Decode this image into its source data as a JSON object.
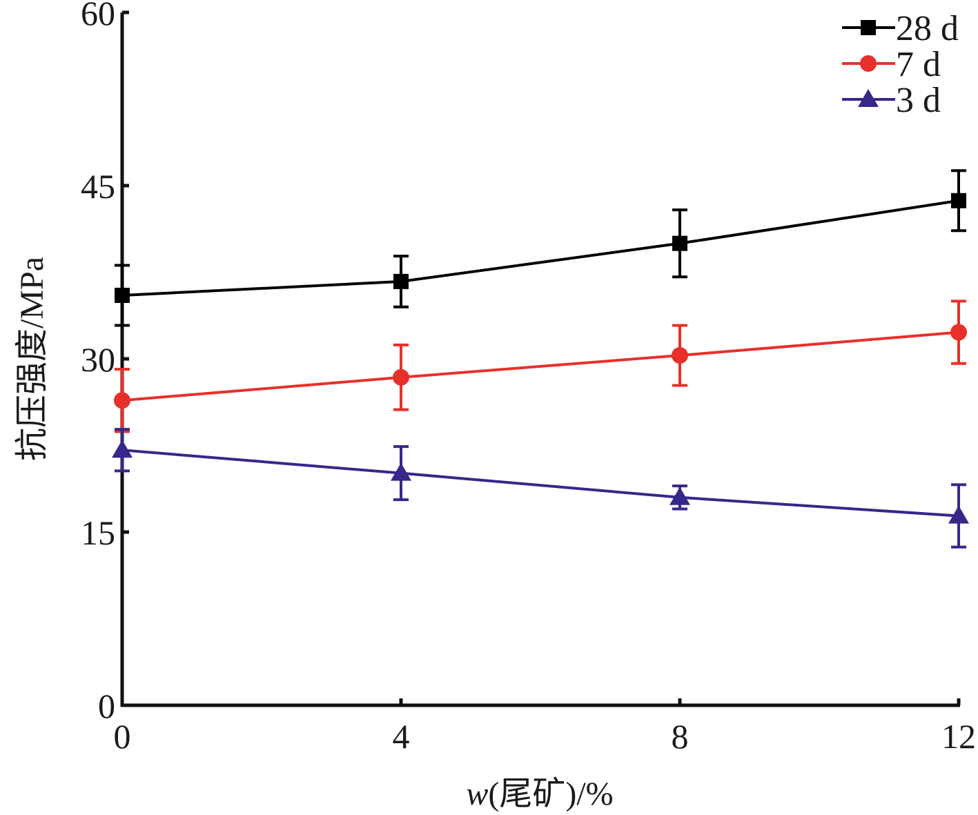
{
  "chart_data": {
    "type": "line",
    "title": "",
    "xlabel_italic": "w",
    "xlabel_rest": "(尾矿)/%",
    "ylabel": "抗压强度/MPa",
    "x": [
      0,
      4,
      8,
      12
    ],
    "x_ticks": [
      "0",
      "4",
      "8",
      "12"
    ],
    "y_ticks": [
      "0",
      "15",
      "30",
      "45",
      "60"
    ],
    "xlim": [
      0,
      12
    ],
    "ylim": [
      0,
      60
    ],
    "grid": false,
    "legend_position": "top-right",
    "series": [
      {
        "name": "28 d",
        "color": "#000000",
        "marker": "square",
        "values": [
          35.5,
          36.7,
          40.0,
          43.7
        ],
        "errors": [
          2.6,
          2.2,
          2.9,
          2.6
        ]
      },
      {
        "name": "7 d",
        "color": "#e8302a",
        "marker": "circle",
        "values": [
          26.4,
          28.4,
          30.3,
          32.3
        ],
        "errors": [
          2.7,
          2.8,
          2.6,
          2.7
        ]
      },
      {
        "name": "3 d",
        "color": "#35288a",
        "marker": "triangle",
        "values": [
          22.1,
          20.1,
          18.0,
          16.4
        ],
        "errors": [
          1.8,
          2.3,
          1.0,
          2.7
        ]
      }
    ]
  }
}
